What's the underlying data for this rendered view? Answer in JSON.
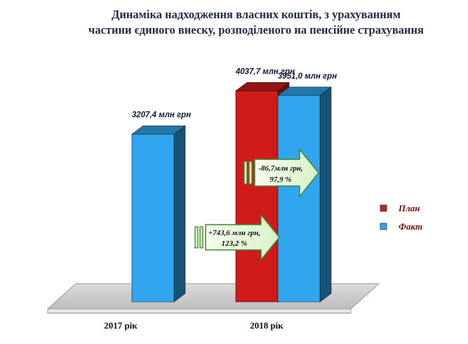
{
  "chart_data": {
    "type": "bar",
    "title_lines": [
      "Динаміка надходження власних коштів, з урахуванням",
      "частини єдиного внеску, розподіленого на пенсійне страхування"
    ],
    "categories": [
      "2017 рік",
      "2018 рік"
    ],
    "series": [
      {
        "name": "План",
        "color": "#d11a1a",
        "values": [
          null,
          4037.7
        ],
        "labels": [
          "",
          "4037,7 млн грн"
        ]
      },
      {
        "name": "Факт",
        "color": "#2fa6ee",
        "values": [
          3207.4,
          3951.0
        ],
        "labels": [
          "3207,4 млн грн",
          "3951,0 млн грн"
        ]
      }
    ],
    "annotations": [
      {
        "lines": [
          "+743,6 млн грн,",
          "123,2 %"
        ]
      },
      {
        "lines": [
          "-86,7млн грн,",
          "97,9 %"
        ]
      }
    ],
    "legend_position": "right",
    "grid": false,
    "ylim": [
      0,
      4500
    ]
  }
}
